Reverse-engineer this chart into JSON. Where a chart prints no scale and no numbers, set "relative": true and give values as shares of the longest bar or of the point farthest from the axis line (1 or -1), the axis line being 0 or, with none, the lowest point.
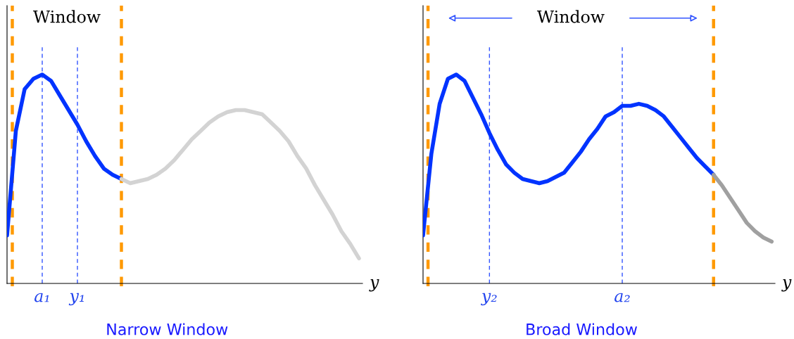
{
  "chart_data": [
    {
      "type": "line",
      "relative": true,
      "title": "Narrow Window",
      "xlabel": "y",
      "tick_labels": "x",
      "categories": [
        null,
        null,
        null,
        null,
        "a₁",
        null,
        null,
        null,
        "y₁",
        null,
        null,
        null,
        null,
        null,
        null,
        null,
        null,
        null,
        null,
        null,
        null,
        null,
        null,
        null,
        null,
        null,
        null,
        null,
        null,
        null,
        null,
        null,
        null,
        null,
        null,
        null,
        null,
        null,
        null,
        null,
        null
      ],
      "series": [
        {
          "color": "#0033ff",
          "values": [
            0.23,
            0.73,
            0.93,
            0.98,
            1.0,
            0.97,
            0.9,
            0.83,
            0.76,
            0.68,
            0.61,
            0.55,
            0.52,
            0.5,
            null,
            null,
            null,
            null,
            null,
            null,
            null,
            null,
            null,
            null,
            null,
            null,
            null,
            null,
            null,
            null,
            null,
            null,
            null,
            null,
            null,
            null,
            null,
            null,
            null,
            null,
            null
          ]
        },
        {
          "color": "#d3d3d3",
          "values": [
            null,
            null,
            null,
            null,
            null,
            null,
            null,
            null,
            null,
            null,
            null,
            null,
            null,
            0.5,
            0.48,
            0.49,
            0.5,
            0.52,
            0.55,
            0.59,
            0.64,
            0.69,
            0.73,
            0.77,
            0.8,
            0.82,
            0.83,
            0.83,
            0.82,
            0.81,
            0.77,
            0.73,
            0.68,
            0.61,
            0.55,
            0.47,
            0.4,
            0.33,
            0.25,
            0.19,
            0.12
          ]
        }
      ],
      "grid": "x",
      "annotations": [
        "Window"
      ]
    },
    {
      "type": "line",
      "relative": true,
      "title": "Broad Window",
      "xlabel": "y",
      "tick_labels": "x",
      "categories": [
        null,
        null,
        null,
        null,
        null,
        null,
        null,
        null,
        "y₂",
        null,
        null,
        null,
        null,
        null,
        null,
        null,
        null,
        null,
        null,
        null,
        null,
        null,
        null,
        null,
        "a₂",
        null,
        null,
        null,
        null,
        null,
        null,
        null,
        null,
        null,
        null,
        null,
        null,
        null,
        null,
        null,
        null,
        null,
        null
      ],
      "series": [
        {
          "color": "#0033ff",
          "values": [
            0.23,
            0.62,
            0.86,
            0.98,
            1.0,
            0.97,
            0.89,
            0.81,
            0.72,
            0.64,
            0.57,
            0.53,
            0.5,
            0.49,
            0.48,
            0.49,
            0.51,
            0.53,
            0.58,
            0.63,
            0.69,
            0.74,
            0.8,
            0.82,
            0.85,
            0.85,
            0.86,
            0.85,
            0.83,
            0.8,
            0.75,
            0.7,
            0.65,
            0.6,
            0.56,
            0.52,
            null,
            null,
            null,
            null,
            null,
            null,
            null
          ]
        },
        {
          "color": "#a0a0a0",
          "values": [
            null,
            null,
            null,
            null,
            null,
            null,
            null,
            null,
            null,
            null,
            null,
            null,
            null,
            null,
            null,
            null,
            null,
            null,
            null,
            null,
            null,
            null,
            null,
            null,
            null,
            null,
            null,
            null,
            null,
            null,
            null,
            null,
            null,
            null,
            null,
            0.52,
            0.47,
            0.41,
            0.35,
            0.29,
            0.25,
            0.22,
            0.2
          ]
        }
      ],
      "grid": "x",
      "annotations": [
        "Window"
      ]
    }
  ]
}
